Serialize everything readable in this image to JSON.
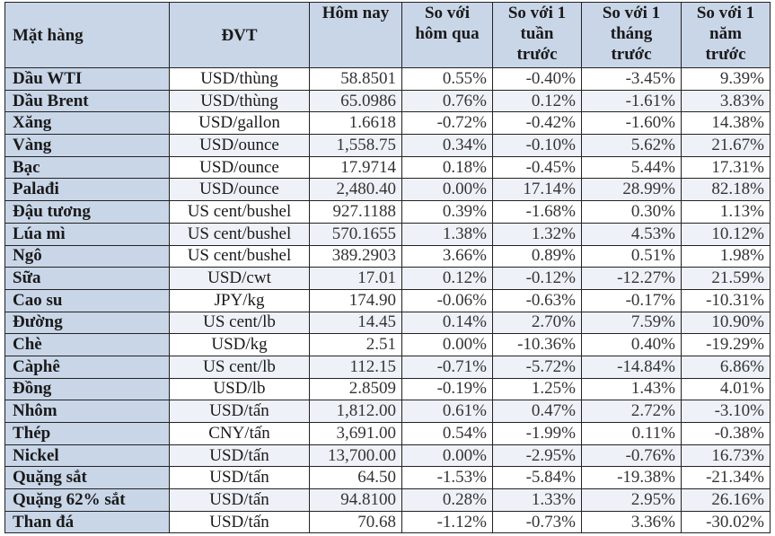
{
  "table": {
    "headers": [
      "Mặt hàng",
      "ĐVT",
      "Hôm nay",
      "So với hôm qua",
      "So với 1 tuần trước",
      "So với 1 tháng trước",
      "So với 1 năm trước"
    ],
    "header_lines": [
      [
        "Mặt hàng"
      ],
      [
        "ĐVT"
      ],
      [
        "Hôm nay"
      ],
      [
        "So với",
        "hôm qua"
      ],
      [
        "So với 1",
        "tuần",
        "trước"
      ],
      [
        "So với 1",
        "tháng",
        "trước"
      ],
      [
        "So với 1",
        "năm",
        "trước"
      ]
    ],
    "rows": [
      {
        "name": "Dầu WTI",
        "unit": "USD/thùng",
        "today": "58.8501",
        "vs_yesterday": "0.55%",
        "vs_week": "-0.40%",
        "vs_month": "-3.45%",
        "vs_year": "9.39%"
      },
      {
        "name": "Dầu Brent",
        "unit": "USD/thùng",
        "today": "65.0986",
        "vs_yesterday": "0.76%",
        "vs_week": "0.12%",
        "vs_month": "-1.61%",
        "vs_year": "3.83%"
      },
      {
        "name": "Xăng",
        "unit": "USD/gallon",
        "today": "1.6618",
        "vs_yesterday": "-0.72%",
        "vs_week": "-0.42%",
        "vs_month": "-1.60%",
        "vs_year": "14.38%"
      },
      {
        "name": "Vàng",
        "unit": "USD/ounce",
        "today": "1,558.75",
        "vs_yesterday": "0.34%",
        "vs_week": "-0.10%",
        "vs_month": "5.62%",
        "vs_year": "21.67%"
      },
      {
        "name": "Bạc",
        "unit": "USD/ounce",
        "today": "17.9714",
        "vs_yesterday": "0.18%",
        "vs_week": "-0.45%",
        "vs_month": "5.44%",
        "vs_year": "17.31%"
      },
      {
        "name": "Palađi",
        "unit": "USD/ounce",
        "today": "2,480.40",
        "vs_yesterday": "0.00%",
        "vs_week": "17.14%",
        "vs_month": "28.99%",
        "vs_year": "82.18%"
      },
      {
        "name": "Đậu tương",
        "unit": "US cent/bushel",
        "today": "927.1188",
        "vs_yesterday": "0.39%",
        "vs_week": "-1.68%",
        "vs_month": "0.30%",
        "vs_year": "1.13%"
      },
      {
        "name": "Lúa mì",
        "unit": "US cent/bushel",
        "today": "570.1655",
        "vs_yesterday": "1.38%",
        "vs_week": "1.32%",
        "vs_month": "4.53%",
        "vs_year": "10.12%"
      },
      {
        "name": "Ngô",
        "unit": "US cent/bushel",
        "today": "389.2903",
        "vs_yesterday": "3.66%",
        "vs_week": "0.89%",
        "vs_month": "0.51%",
        "vs_year": "1.98%"
      },
      {
        "name": "Sữa",
        "unit": "USD/cwt",
        "today": "17.01",
        "vs_yesterday": "0.12%",
        "vs_week": "-0.12%",
        "vs_month": "-12.27%",
        "vs_year": "21.59%"
      },
      {
        "name": "Cao su",
        "unit": "JPY/kg",
        "today": "174.90",
        "vs_yesterday": "-0.06%",
        "vs_week": "-0.63%",
        "vs_month": "-0.17%",
        "vs_year": "-10.31%"
      },
      {
        "name": "Đường",
        "unit": "US cent/lb",
        "today": "14.45",
        "vs_yesterday": "0.14%",
        "vs_week": "2.70%",
        "vs_month": "7.59%",
        "vs_year": "10.90%"
      },
      {
        "name": "Chè",
        "unit": "USD/kg",
        "today": "2.51",
        "vs_yesterday": "0.00%",
        "vs_week": "-10.36%",
        "vs_month": "0.40%",
        "vs_year": "-19.29%"
      },
      {
        "name": "Càphê",
        "unit": "US cent/lb",
        "today": "112.15",
        "vs_yesterday": "-0.71%",
        "vs_week": "-5.72%",
        "vs_month": "-14.84%",
        "vs_year": "6.86%"
      },
      {
        "name": "Đồng",
        "unit": "USD/lb",
        "today": "2.8509",
        "vs_yesterday": "-0.19%",
        "vs_week": "1.25%",
        "vs_month": "1.43%",
        "vs_year": "4.01%"
      },
      {
        "name": "Nhôm",
        "unit": "USD/tấn",
        "today": "1,812.00",
        "vs_yesterday": "0.61%",
        "vs_week": "0.47%",
        "vs_month": "2.72%",
        "vs_year": "-3.10%"
      },
      {
        "name": "Thép",
        "unit": "CNY/tấn",
        "today": "3,691.00",
        "vs_yesterday": "0.54%",
        "vs_week": "-1.99%",
        "vs_month": "0.11%",
        "vs_year": "-0.38%"
      },
      {
        "name": "Nickel",
        "unit": "USD/tấn",
        "today": "13,700.00",
        "vs_yesterday": "0.00%",
        "vs_week": "-2.95%",
        "vs_month": "-0.76%",
        "vs_year": "16.73%"
      },
      {
        "name": "Quặng sắt",
        "unit": "USD/tấn",
        "today": "64.50",
        "vs_yesterday": "-1.53%",
        "vs_week": "-5.84%",
        "vs_month": "-19.38%",
        "vs_year": "-21.34%"
      },
      {
        "name": "Quặng 62% sắt",
        "unit": "USD/tấn",
        "today": "94.8100",
        "vs_yesterday": "0.28%",
        "vs_week": "1.33%",
        "vs_month": "2.95%",
        "vs_year": "26.16%"
      },
      {
        "name": "Than đá",
        "unit": "USD/tấn",
        "today": "70.68",
        "vs_yesterday": "-1.12%",
        "vs_week": "-0.73%",
        "vs_month": "3.36%",
        "vs_year": "-30.02%"
      }
    ]
  },
  "colors": {
    "header_bg": "#c9d6e8",
    "name_col_bg": "#c9d6e8",
    "alt_row_bg": "#eef1f7",
    "row_bg": "#ffffff",
    "border": "#222222"
  }
}
